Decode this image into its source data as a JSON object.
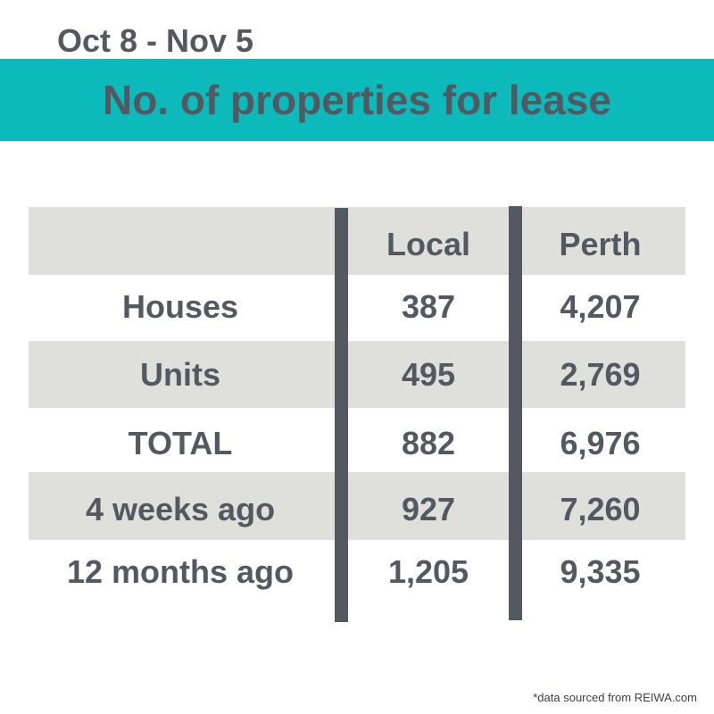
{
  "header": {
    "date_range": "Oct 8 - Nov 5",
    "title": "No. of properties for lease"
  },
  "table": {
    "columns": [
      "",
      "Local",
      "Perth"
    ],
    "rows": [
      {
        "label": "Houses",
        "local": "387",
        "perth": "4,207"
      },
      {
        "label": "Units",
        "local": "495",
        "perth": "2,769"
      },
      {
        "label": "TOTAL",
        "local": "882",
        "perth": "6,976"
      },
      {
        "label": "4 weeks ago",
        "local": "927",
        "perth": "7,260"
      },
      {
        "label": "12 months ago",
        "local": "1,205",
        "perth": "9,335"
      }
    ]
  },
  "footnote": "*data sourced from REIWA.com",
  "colors": {
    "accent_teal": "#0cbabb",
    "text_slate": "#545861",
    "band_gray": "#dfdfdb"
  }
}
